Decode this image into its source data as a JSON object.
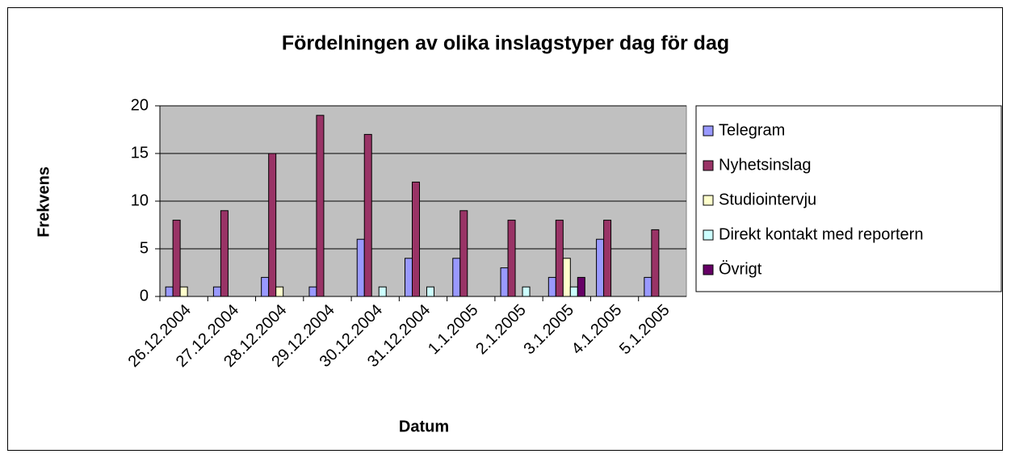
{
  "chart_data": {
    "type": "bar",
    "title": "Fördelningen av olika inslagstyper dag för dag",
    "x_label": "Datum",
    "y_label": "Frekvens",
    "categories": [
      "26.12.2004",
      "27.12.2004",
      "28.12.2004",
      "29.12.2004",
      "30.12.2004",
      "31.12.2004",
      "1.1.2005",
      "2.1.2005",
      "3.1.2005",
      "4.1.2005",
      "5.1.2005"
    ],
    "series": [
      {
        "name": "Telegram",
        "color": "#9999ff",
        "values": [
          1,
          1,
          2,
          1,
          6,
          4,
          4,
          3,
          2,
          6,
          2
        ]
      },
      {
        "name": "Nyhetsinslag",
        "color": "#993366",
        "values": [
          8,
          9,
          15,
          19,
          17,
          12,
          9,
          8,
          8,
          8,
          7
        ]
      },
      {
        "name": "Studiointervju",
        "color": "#ffffcc",
        "values": [
          1,
          0,
          1,
          0,
          0,
          0,
          0,
          0,
          4,
          0,
          0
        ]
      },
      {
        "name": "Direkt kontakt med reportern",
        "color": "#ccffff",
        "values": [
          0,
          0,
          0,
          0,
          1,
          1,
          0,
          1,
          1,
          0,
          0
        ]
      },
      {
        "name": "Övrigt",
        "color": "#660066",
        "values": [
          0,
          0,
          0,
          0,
          0,
          0,
          0,
          0,
          2,
          0,
          0
        ]
      }
    ],
    "ylim": [
      0,
      20
    ],
    "yticks": [
      0,
      5,
      10,
      15,
      20
    ],
    "grid": true,
    "legend": "right",
    "plot_background": "#c0c0c0"
  }
}
